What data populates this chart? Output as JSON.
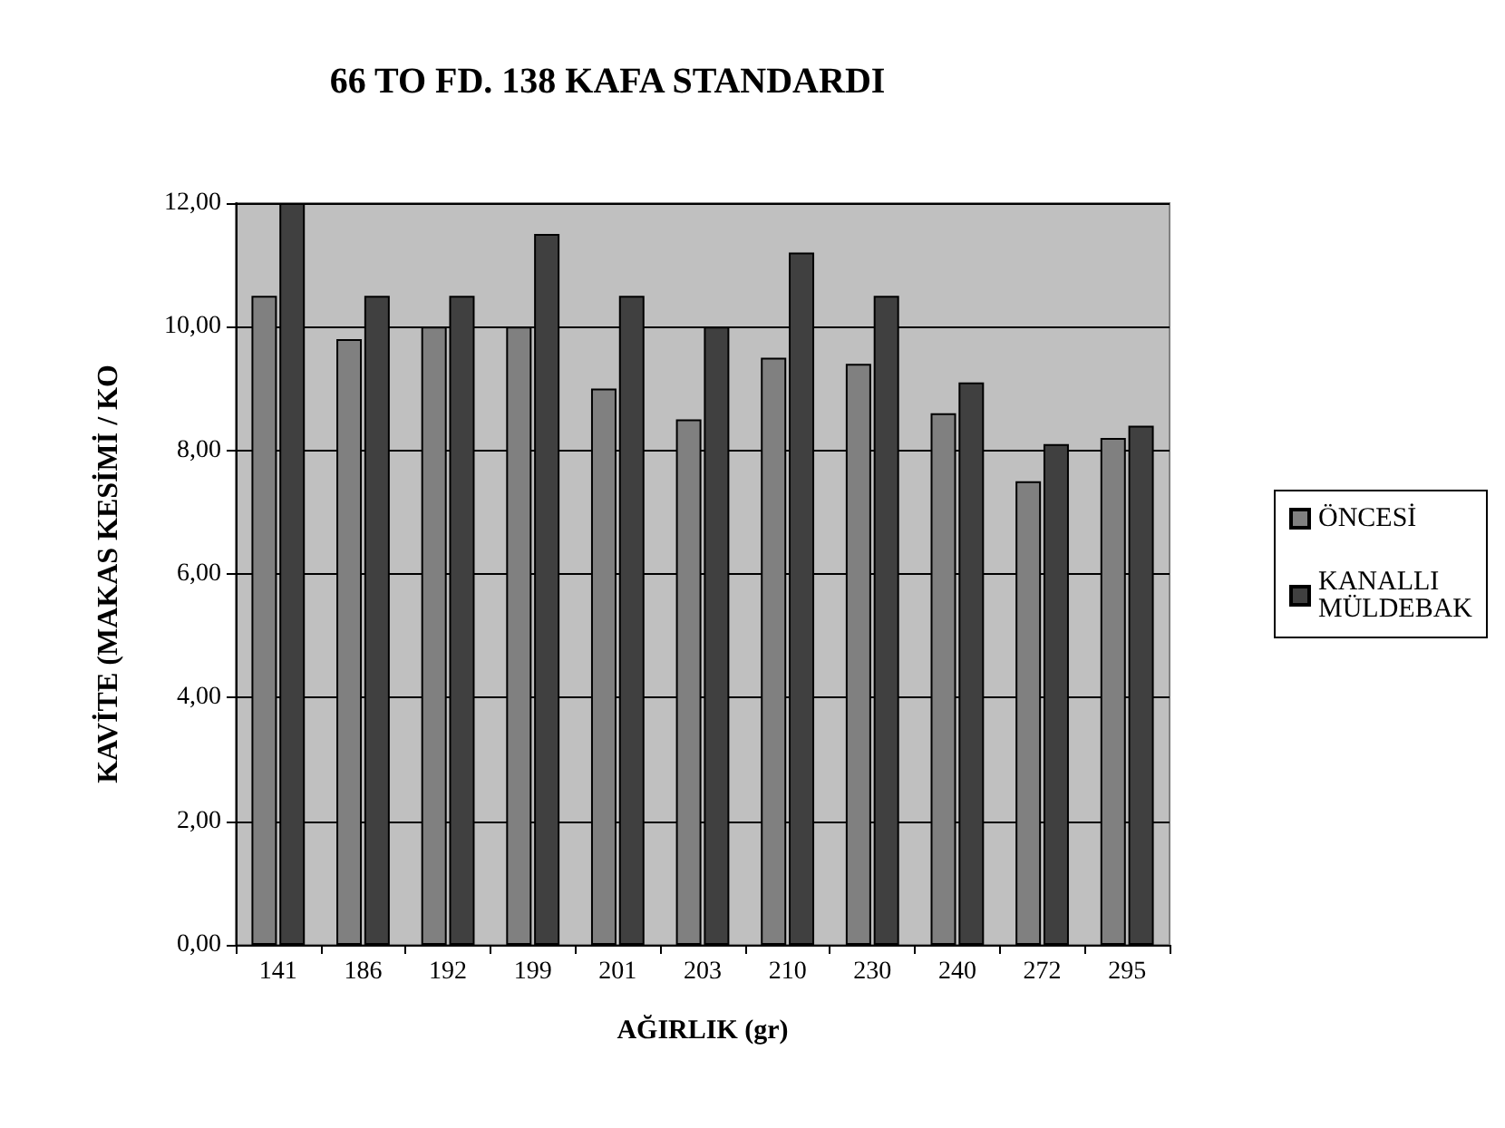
{
  "chart_data": {
    "type": "bar",
    "title": "66 TO FD. 138 KAFA STANDARDI",
    "xlabel": "AĞIRLIK (gr)",
    "ylabel": "KAVİTE (MAKAS KESİMİ / KO",
    "categories": [
      "141",
      "186",
      "192",
      "199",
      "201",
      "203",
      "210",
      "230",
      "240",
      "272",
      "295"
    ],
    "series": [
      {
        "name": "ÖNCESİ",
        "color": "#808080",
        "values": [
          10.5,
          9.8,
          10.0,
          10.0,
          9.0,
          8.5,
          9.5,
          9.4,
          8.6,
          7.5,
          8.2
        ]
      },
      {
        "name": "KANALLI MÜLDEBAK",
        "color": "#404040",
        "values": [
          12.0,
          10.5,
          10.5,
          11.5,
          10.5,
          10.0,
          11.2,
          10.5,
          9.1,
          8.1,
          8.4
        ]
      }
    ],
    "ylim": [
      0,
      12
    ],
    "yticks": [
      {
        "value": 0,
        "label": "0,00"
      },
      {
        "value": 2,
        "label": "2,00"
      },
      {
        "value": 4,
        "label": "4,00"
      },
      {
        "value": 6,
        "label": "6,00"
      },
      {
        "value": 8,
        "label": "8,00"
      },
      {
        "value": 10,
        "label": "10,00"
      },
      {
        "value": 12,
        "label": "12,00"
      }
    ],
    "grid": "y",
    "legend": "right"
  }
}
